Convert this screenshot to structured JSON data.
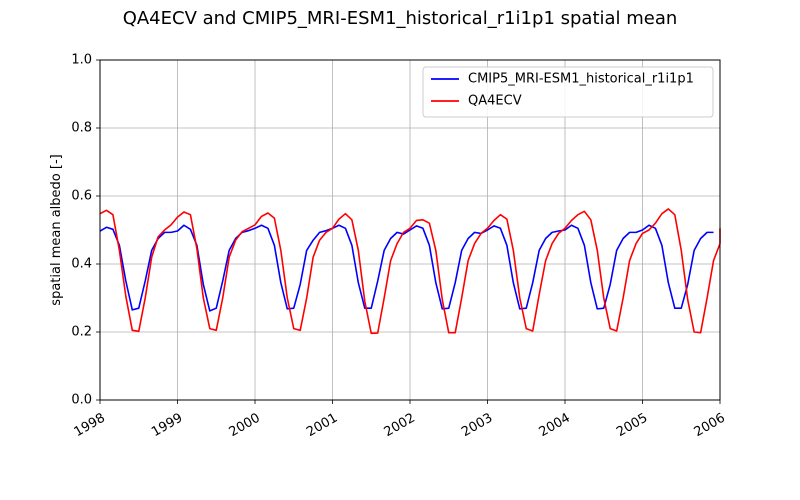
{
  "chart_data": {
    "type": "line",
    "title": "QA4ECV and CMIP5_MRI-ESM1_historical_r1i1p1 spatial mean",
    "xlabel": "",
    "ylabel": "spatial mean albedo [-]",
    "xlim": [
      1998,
      2006
    ],
    "ylim": [
      0,
      1
    ],
    "xticks": [
      "1998",
      "1999",
      "2000",
      "2001",
      "2002",
      "2003",
      "2004",
      "2005",
      "2006"
    ],
    "yticks": [
      "0.0",
      "0.2",
      "0.4",
      "0.6",
      "0.8",
      "1.0"
    ],
    "grid": true,
    "legend_position": "upper right",
    "x_unit": "year (monthly samples, 1/12 year apart)",
    "series": [
      {
        "name": "CMIP5_MRI-ESM1_historical_r1i1p1",
        "color": "#0000ff",
        "x_start": 1998,
        "x_step_months": 1,
        "values": [
          0.497,
          0.508,
          0.502,
          0.455,
          0.35,
          0.265,
          0.27,
          0.35,
          0.44,
          0.475,
          0.493,
          0.493,
          0.497,
          0.514,
          0.502,
          0.455,
          0.34,
          0.262,
          0.27,
          0.35,
          0.44,
          0.475,
          0.493,
          0.498,
          0.505,
          0.514,
          0.505,
          0.455,
          0.345,
          0.268,
          0.27,
          0.34,
          0.44,
          0.47,
          0.493,
          0.498,
          0.505,
          0.514,
          0.505,
          0.455,
          0.345,
          0.27,
          0.27,
          0.35,
          0.44,
          0.475,
          0.493,
          0.488,
          0.5,
          0.512,
          0.505,
          0.455,
          0.345,
          0.268,
          0.27,
          0.345,
          0.44,
          0.475,
          0.493,
          0.49,
          0.5,
          0.512,
          0.505,
          0.455,
          0.345,
          0.268,
          0.27,
          0.345,
          0.44,
          0.475,
          0.493,
          0.497,
          0.5,
          0.514,
          0.505,
          0.455,
          0.345,
          0.268,
          0.27,
          0.34,
          0.44,
          0.475,
          0.493,
          0.493,
          0.5,
          0.514,
          0.505,
          0.455,
          0.345,
          0.27,
          0.27,
          0.34,
          0.44,
          0.475,
          0.493,
          0.493
        ]
      },
      {
        "name": "QA4ECV",
        "color": "#ff0000",
        "x_start": 1998,
        "x_step_months": 1,
        "values": [
          0.548,
          0.558,
          0.545,
          0.44,
          0.305,
          0.205,
          0.202,
          0.3,
          0.42,
          0.48,
          0.5,
          0.515,
          0.538,
          0.553,
          0.545,
          0.445,
          0.3,
          0.21,
          0.205,
          0.3,
          0.42,
          0.47,
          0.495,
          0.505,
          0.515,
          0.54,
          0.55,
          0.535,
          0.44,
          0.3,
          0.21,
          0.205,
          0.3,
          0.42,
          0.47,
          0.493,
          0.505,
          0.532,
          0.548,
          0.53,
          0.44,
          0.29,
          0.196,
          0.197,
          0.3,
          0.41,
          0.46,
          0.493,
          0.505,
          0.528,
          0.53,
          0.52,
          0.44,
          0.295,
          0.198,
          0.198,
          0.3,
          0.41,
          0.46,
          0.49,
          0.505,
          0.528,
          0.545,
          0.532,
          0.44,
          0.3,
          0.21,
          0.203,
          0.31,
          0.41,
          0.46,
          0.49,
          0.505,
          0.528,
          0.545,
          0.555,
          0.53,
          0.44,
          0.3,
          0.21,
          0.203,
          0.3,
          0.41,
          0.46,
          0.49,
          0.5,
          0.52,
          0.548,
          0.562,
          0.545,
          0.44,
          0.295,
          0.2,
          0.198,
          0.3,
          0.41,
          0.46,
          0.49,
          0.505
        ]
      }
    ]
  }
}
